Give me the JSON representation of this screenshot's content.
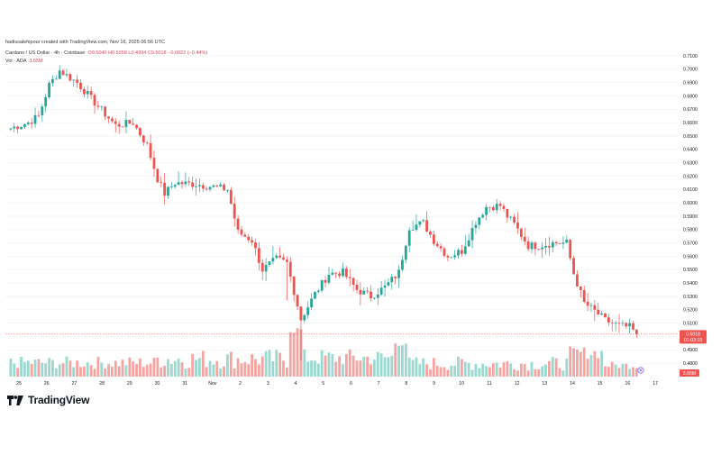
{
  "header": {
    "creator_line": "hadissalehipour created with TradingView.com, Nov 16, 2025 06:56 UTC",
    "symbol_line": "Cardano / US Dollar · 4h · Coinbase",
    "ohlc": {
      "o": "O0.5040",
      "h": "H0.5058",
      "l": "L0.4994",
      "c": "C0.5018",
      "chg": "−0.0022 (−0.44%)"
    },
    "vol_label": "Vol · ADA",
    "vol_value": "3.65M"
  },
  "brand": {
    "name": "TradingView",
    "icon": "tradingview-logo-icon"
  },
  "price_tag": {
    "value": "0.5018",
    "countdown": "01:03:19"
  },
  "vol_tag": {
    "value": "3.65M"
  },
  "colors": {
    "up": "#26a69a",
    "down": "#ef5350",
    "vol_up": "#9bd8cf",
    "vol_down": "#f5a4a2",
    "grid": "#eef0f3",
    "axis_text": "#131722",
    "tag": "#ef5350"
  },
  "chart_data": {
    "type": "candlestick",
    "title": "Cardano / US Dollar · 4h · Coinbase",
    "y_axis": {
      "min": 0.47,
      "max": 0.71,
      "ticks": [
        "0.7100",
        "0.7000",
        "0.6900",
        "0.6800",
        "0.6700",
        "0.6600",
        "0.6500",
        "0.6400",
        "0.6300",
        "0.6200",
        "0.6100",
        "0.6000",
        "0.5900",
        "0.5800",
        "0.5700",
        "0.5600",
        "0.5500",
        "0.5400",
        "0.5300",
        "0.5200",
        "0.5100",
        "0.5000",
        "0.4900",
        "0.4800"
      ]
    },
    "x_axis": {
      "labels": [
        "25",
        "26",
        "27",
        "28",
        "29",
        "30",
        "31",
        "Nov",
        "2",
        "3",
        "4",
        "5",
        "6",
        "7",
        "8",
        "9",
        "10",
        "11",
        "12",
        "13",
        "14",
        "15",
        "16",
        "17"
      ]
    },
    "anchors": [
      {
        "i": 0,
        "p": 0.655
      },
      {
        "i": 6,
        "p": 0.66
      },
      {
        "i": 9,
        "p": 0.665
      },
      {
        "i": 12,
        "p": 0.688
      },
      {
        "i": 15,
        "p": 0.699
      },
      {
        "i": 20,
        "p": 0.69
      },
      {
        "i": 25,
        "p": 0.675
      },
      {
        "i": 31,
        "p": 0.658
      },
      {
        "i": 36,
        "p": 0.66
      },
      {
        "i": 40,
        "p": 0.643
      },
      {
        "i": 43,
        "p": 0.618
      },
      {
        "i": 45,
        "p": 0.607
      },
      {
        "i": 48,
        "p": 0.615
      },
      {
        "i": 54,
        "p": 0.614
      },
      {
        "i": 59,
        "p": 0.612
      },
      {
        "i": 63,
        "p": 0.61
      },
      {
        "i": 66,
        "p": 0.578
      },
      {
        "i": 70,
        "p": 0.572
      },
      {
        "i": 73,
        "p": 0.55
      },
      {
        "i": 77,
        "p": 0.558
      },
      {
        "i": 80,
        "p": 0.555
      },
      {
        "i": 84,
        "p": 0.513
      },
      {
        "i": 88,
        "p": 0.532
      },
      {
        "i": 92,
        "p": 0.547
      },
      {
        "i": 96,
        "p": 0.548
      },
      {
        "i": 100,
        "p": 0.535
      },
      {
        "i": 104,
        "p": 0.53
      },
      {
        "i": 108,
        "p": 0.537
      },
      {
        "i": 112,
        "p": 0.548
      },
      {
        "i": 115,
        "p": 0.582
      },
      {
        "i": 119,
        "p": 0.585
      },
      {
        "i": 122,
        "p": 0.572
      },
      {
        "i": 126,
        "p": 0.56
      },
      {
        "i": 130,
        "p": 0.564
      },
      {
        "i": 134,
        "p": 0.586
      },
      {
        "i": 137,
        "p": 0.597
      },
      {
        "i": 141,
        "p": 0.598
      },
      {
        "i": 143,
        "p": 0.59
      },
      {
        "i": 145,
        "p": 0.584
      },
      {
        "i": 149,
        "p": 0.568
      },
      {
        "i": 152,
        "p": 0.568
      },
      {
        "i": 156,
        "p": 0.57
      },
      {
        "i": 160,
        "p": 0.57
      },
      {
        "i": 162,
        "p": 0.547
      },
      {
        "i": 165,
        "p": 0.525
      },
      {
        "i": 168,
        "p": 0.519
      },
      {
        "i": 171,
        "p": 0.512
      },
      {
        "i": 175,
        "p": 0.508
      },
      {
        "i": 178,
        "p": 0.507
      },
      {
        "i": 180,
        "p": 0.5018
      }
    ],
    "volume_ranges": [
      {
        "from": 0,
        "to": 42,
        "min": 0.15,
        "max": 0.4
      },
      {
        "from": 43,
        "to": 80,
        "min": 0.15,
        "max": 0.55
      },
      {
        "from": 81,
        "to": 84,
        "min": 0.85,
        "max": 1.0
      },
      {
        "from": 85,
        "to": 110,
        "min": 0.2,
        "max": 0.55
      },
      {
        "from": 111,
        "to": 114,
        "min": 0.6,
        "max": 0.75
      },
      {
        "from": 115,
        "to": 160,
        "min": 0.12,
        "max": 0.4
      },
      {
        "from": 161,
        "to": 170,
        "min": 0.35,
        "max": 0.6
      },
      {
        "from": 171,
        "to": 180,
        "min": 0.15,
        "max": 0.3
      }
    ]
  }
}
